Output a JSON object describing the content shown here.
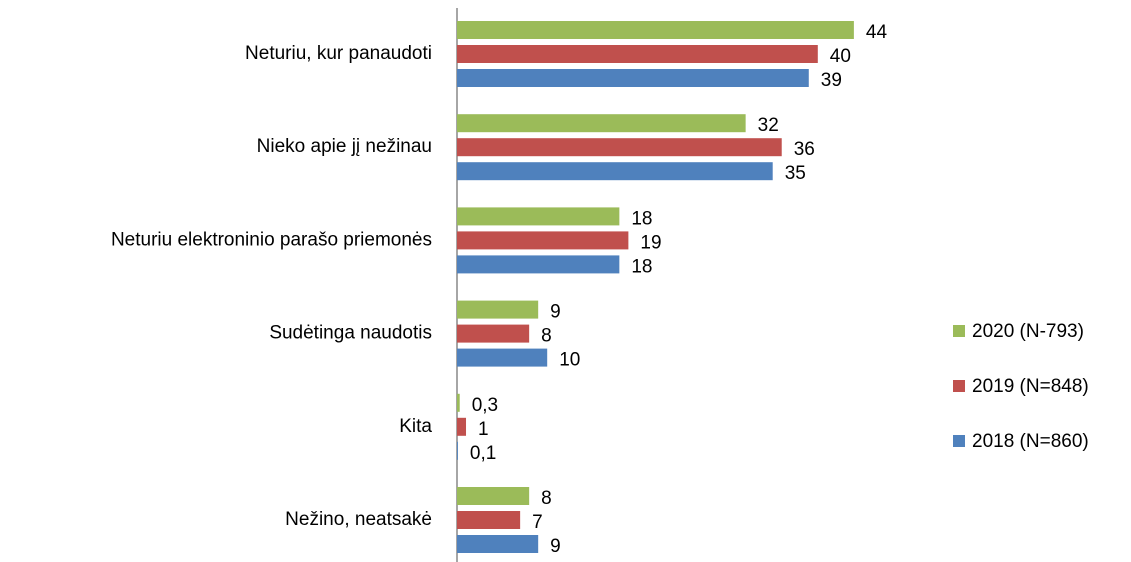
{
  "chart_data": {
    "type": "bar",
    "orientation": "horizontal",
    "categories": [
      "Neturiu, kur panaudoti",
      "Nieko apie jį nežinau",
      "Neturiu elektroninio parašo priemonės",
      "Sudėtinga naudotis",
      "Kita",
      "Nežino, neatsakė"
    ],
    "series": [
      {
        "name": "2020 (N-793)",
        "color": "#9bbb59",
        "values": [
          44,
          32,
          18,
          9,
          0.3,
          8
        ],
        "value_labels": [
          "44",
          "32",
          "18",
          "9",
          "0,3",
          "8"
        ]
      },
      {
        "name": "2019 (N=848)",
        "color": "#c0504d",
        "values": [
          40,
          36,
          19,
          8,
          1,
          7
        ],
        "value_labels": [
          "40",
          "36",
          "19",
          "8",
          "1",
          "7"
        ]
      },
      {
        "name": "2018 (N=860)",
        "color": "#4f81bd",
        "values": [
          39,
          35,
          18,
          10,
          0.1,
          9
        ],
        "value_labels": [
          "39",
          "35",
          "18",
          "10",
          "0,1",
          "9"
        ]
      }
    ],
    "xlim": [
      0,
      50
    ],
    "legend": "right"
  }
}
